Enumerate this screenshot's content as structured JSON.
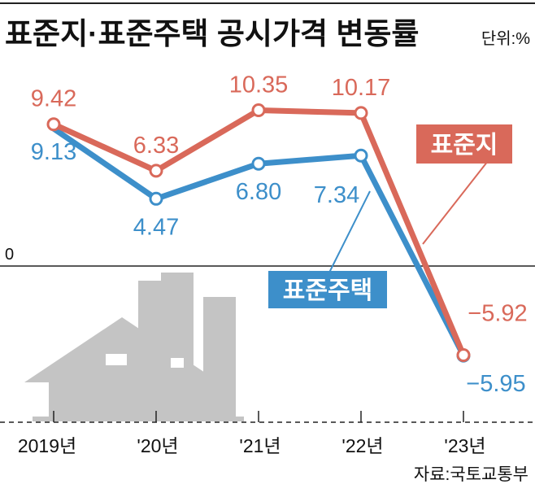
{
  "chart_data": {
    "type": "line",
    "title": "표준지·표준주택 공시가격 변동률",
    "unit": "단위:%",
    "source": "자료:국토교통부",
    "categories": [
      "2019년",
      "'20년",
      "'21년",
      "'22년",
      "'23년"
    ],
    "zero_label": "0",
    "series": [
      {
        "name": "표준지",
        "color": "#d9695a",
        "values": [
          9.42,
          6.33,
          10.35,
          10.17,
          -5.92
        ],
        "labels": [
          "9.42",
          "6.33",
          "10.35",
          "10.17",
          "−5.92"
        ]
      },
      {
        "name": "표준주택",
        "color": "#3d8fca",
        "values": [
          9.13,
          4.47,
          6.8,
          7.34,
          -5.95
        ],
        "labels": [
          "9.13",
          "4.47",
          "6.80",
          "7.34",
          "−5.95"
        ]
      }
    ],
    "ylim": [
      -10.5,
      11.5
    ],
    "grid": false
  }
}
